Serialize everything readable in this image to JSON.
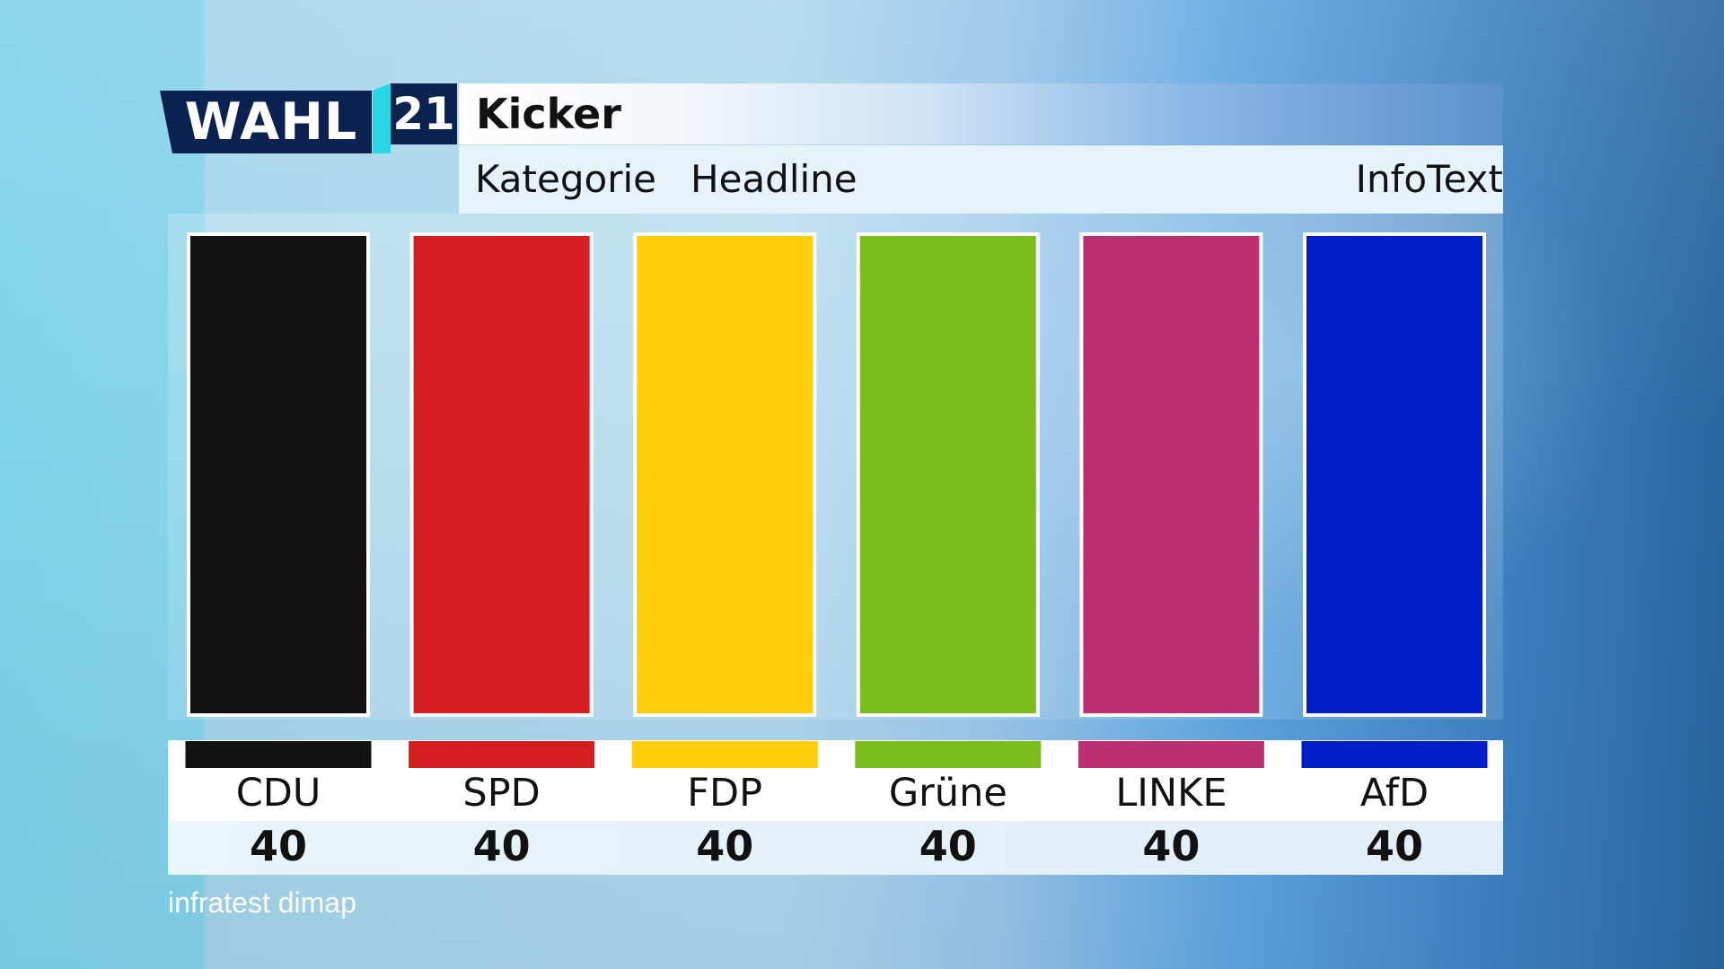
{
  "logo": {
    "word": "WAHL",
    "year": "21"
  },
  "header": {
    "kicker": "Kicker",
    "kategorie": "Kategorie",
    "headline": "Headline",
    "infotext": "InfoText"
  },
  "source": "infratest dimap",
  "chart_data": {
    "type": "bar",
    "title": "",
    "xlabel": "",
    "ylabel": "",
    "ylim": [
      0,
      40
    ],
    "categories": [
      "CDU",
      "SPD",
      "FDP",
      "Grüne",
      "LINKE",
      "AfD"
    ],
    "values": [
      40,
      40,
      40,
      40,
      40,
      40
    ],
    "labels": [
      "40",
      "40",
      "40",
      "40",
      "40",
      "40"
    ],
    "colors": [
      "#121212",
      "#d51e1f",
      "#fecd0b",
      "#7bbd1c",
      "#bc3073",
      "#001ec8"
    ],
    "grid": false,
    "legend": "none"
  }
}
